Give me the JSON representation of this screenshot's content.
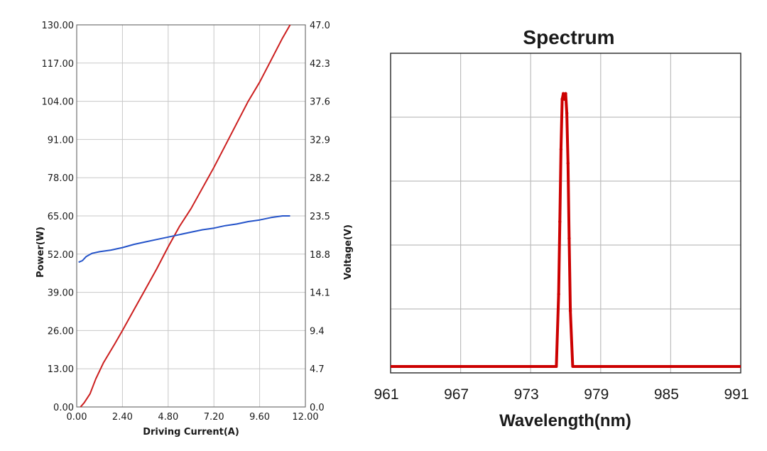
{
  "chart_data": [
    {
      "type": "line",
      "title": "",
      "xlabel": "Driving Current(A)",
      "ylabel": "Power(W)",
      "y2label": "Voltage(V)",
      "xlim": [
        0,
        12
      ],
      "ylim": [
        0,
        130
      ],
      "y2lim": [
        0,
        47
      ],
      "xticks": [
        "0.00",
        "2.40",
        "4.80",
        "7.20",
        "9.60",
        "12.00"
      ],
      "yticks": [
        "0.00",
        "13.00",
        "26.00",
        "39.00",
        "52.00",
        "65.00",
        "78.00",
        "91.00",
        "104.00",
        "117.00",
        "130.00"
      ],
      "y2ticks": [
        "0.0",
        "4.7",
        "9.4",
        "14.1",
        "18.8",
        "23.5",
        "28.2",
        "32.9",
        "37.6",
        "42.3",
        "47.0"
      ],
      "grid": true,
      "series": [
        {
          "axis": "left",
          "color": "#cc1f1f",
          "x": [
            0.2,
            0.4,
            0.7,
            1.0,
            1.4,
            2.0,
            2.4,
            3.0,
            3.6,
            4.2,
            4.8,
            5.4,
            6.0,
            6.6,
            7.2,
            7.8,
            8.4,
            9.0,
            9.6,
            10.2,
            10.8,
            11.2
          ],
          "y": [
            0.0,
            1.5,
            4.5,
            9.5,
            15.0,
            21.5,
            26.0,
            33.0,
            40.0,
            47.0,
            54.5,
            61.5,
            67.5,
            74.5,
            81.5,
            89.0,
            96.5,
            104.0,
            110.5,
            118.0,
            125.5,
            130.0
          ]
        },
        {
          "axis": "right",
          "color": "#2453c9",
          "x": [
            0.1,
            0.3,
            0.5,
            0.8,
            1.2,
            1.8,
            2.4,
            3.0,
            3.6,
            4.2,
            4.8,
            5.4,
            6.0,
            6.6,
            7.2,
            7.8,
            8.4,
            9.0,
            9.6,
            10.2,
            10.8,
            11.2
          ],
          "y": [
            17.8,
            18.0,
            18.5,
            18.9,
            19.1,
            19.3,
            19.6,
            20.0,
            20.3,
            20.6,
            20.9,
            21.2,
            21.5,
            21.8,
            22.0,
            22.3,
            22.5,
            22.8,
            23.0,
            23.3,
            23.5,
            23.5
          ]
        }
      ]
    },
    {
      "type": "line",
      "title": "Spectrum",
      "xlabel": "Wavelength(nm)",
      "ylabel": "",
      "xlim": [
        961,
        991
      ],
      "xticks": [
        "961",
        "967",
        "973",
        "979",
        "985",
        "991"
      ],
      "ylim": [
        0,
        1
      ],
      "yticks": [],
      "grid": true,
      "series": [
        {
          "color": "#cc0000",
          "x": [
            961,
            964,
            967,
            970,
            973,
            975.2,
            975.4,
            975.5,
            975.6,
            975.7,
            975.8,
            975.9,
            976.0,
            976.1,
            976.2,
            976.3,
            976.4,
            976.6,
            977.0,
            980,
            983,
            986,
            989,
            991
          ],
          "y": [
            0.0,
            0.0,
            0.0,
            0.0,
            0.0,
            0.0,
            0.26,
            0.52,
            0.78,
            0.96,
            0.98,
            0.96,
            0.98,
            0.91,
            0.73,
            0.46,
            0.2,
            0.0,
            0.0,
            0.0,
            0.0,
            0.0,
            0.0,
            0.0
          ]
        }
      ]
    }
  ]
}
